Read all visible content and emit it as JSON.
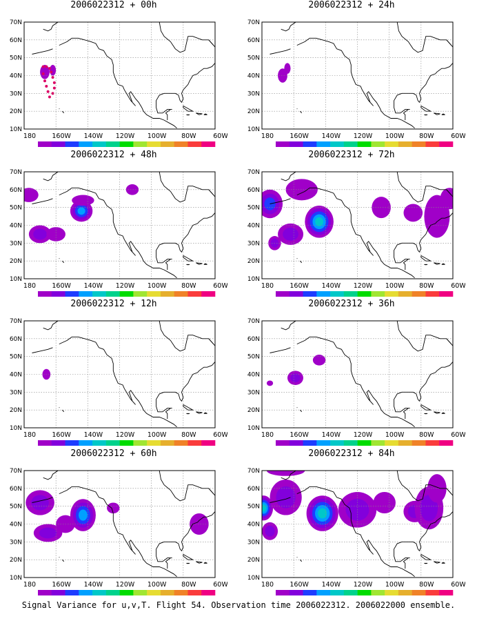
{
  "caption": "Signal Variance for u,v,T. Flight 54. Observation time 2006022312. 2006022000 ensemble.",
  "lat_labels": [
    "70N",
    "60N",
    "50N",
    "40N",
    "30N",
    "20N",
    "10N"
  ],
  "lon_labels": [
    "180",
    "160W",
    "140W",
    "120W",
    "100W",
    "80W",
    "60W"
  ],
  "colorbar": {
    "labels": [
      "1.6",
      "2.2",
      "3.1",
      "4",
      "5.1",
      "6.3",
      "7.5",
      "9",
      "11",
      "14",
      "21",
      "29",
      "40"
    ],
    "colors": [
      "#a000c8",
      "#8200dc",
      "#1e3cff",
      "#00a0ff",
      "#00c8c8",
      "#00d28c",
      "#00dc00",
      "#a0e632",
      "#e6dc32",
      "#e6af2d",
      "#f08228",
      "#fa3c3c",
      "#f00082"
    ]
  },
  "panels": [
    {
      "title": "2006022312 + 00h",
      "blobs": [
        [
          167,
          42,
          3,
          4,
          1
        ],
        [
          162,
          43,
          2,
          3,
          1
        ]
      ],
      "track": true
    },
    {
      "title": "2006022312 + 12h",
      "blobs": [
        [
          166,
          40,
          2.5,
          3,
          1
        ]
      ]
    },
    {
      "title": "2006022312 + 24h",
      "blobs": [
        [
          167,
          40,
          3,
          4,
          1
        ],
        [
          164,
          44,
          2,
          3,
          1
        ]
      ]
    },
    {
      "title": "2006022312 + 36h",
      "blobs": [
        [
          159,
          38,
          5,
          4,
          2
        ],
        [
          144,
          48,
          4,
          3,
          1
        ],
        [
          175,
          35,
          2,
          1.5,
          1
        ]
      ]
    },
    {
      "title": "2006022312 + 48h",
      "blobs": [
        [
          144,
          48,
          7,
          6,
          4
        ],
        [
          170,
          35,
          7,
          5,
          2
        ],
        [
          160,
          35,
          6,
          4,
          1
        ],
        [
          177,
          57,
          6,
          4,
          1
        ],
        [
          143,
          54,
          7,
          3,
          1
        ],
        [
          112,
          60,
          4,
          3,
          1
        ]
      ]
    },
    {
      "title": "2006022312 + 60h",
      "blobs": [
        [
          143,
          45,
          8,
          9,
          4
        ],
        [
          170,
          52,
          9,
          7,
          2
        ],
        [
          165,
          35,
          9,
          5,
          2
        ],
        [
          154,
          40,
          6,
          5,
          1
        ],
        [
          124,
          49,
          4,
          3,
          1
        ],
        [
          70,
          40,
          6,
          6,
          1
        ]
      ]
    },
    {
      "title": "2006022312 + 72h",
      "blobs": [
        [
          144,
          42,
          9,
          9,
          5
        ],
        [
          175,
          52,
          8,
          8,
          3
        ],
        [
          162,
          35,
          8,
          6,
          2
        ],
        [
          172,
          30,
          4,
          4,
          2
        ],
        [
          155,
          60,
          10,
          6,
          1
        ],
        [
          105,
          50,
          6,
          6,
          1
        ],
        [
          85,
          47,
          6,
          5,
          1
        ],
        [
          70,
          45,
          8,
          12,
          1
        ],
        [
          62,
          55,
          6,
          6,
          1
        ]
      ]
    },
    {
      "title": "2006022312 + 84h",
      "blobs": [
        [
          179,
          49,
          6,
          7,
          5
        ],
        [
          142,
          46,
          10,
          10,
          5
        ],
        [
          165,
          55,
          10,
          10,
          2
        ],
        [
          175,
          36,
          5,
          5,
          2
        ],
        [
          120,
          48,
          12,
          10,
          2
        ],
        [
          103,
          52,
          7,
          6,
          1
        ],
        [
          84,
          47,
          7,
          6,
          2
        ],
        [
          75,
          49,
          9,
          12,
          2
        ],
        [
          70,
          60,
          6,
          8,
          1
        ],
        [
          165,
          70,
          12,
          3,
          1
        ]
      ]
    }
  ]
}
